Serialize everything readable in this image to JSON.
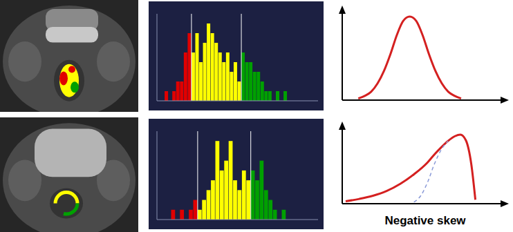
{
  "chart_data": [
    {
      "type": "histogram",
      "bins": [
        500,
        540,
        580,
        620,
        660,
        700,
        740,
        780,
        820,
        860,
        900,
        940,
        980,
        1020,
        1060,
        1100,
        1140,
        1180,
        1220,
        1260,
        1300,
        1340,
        1380,
        1420,
        1460,
        1500,
        1540,
        1580,
        1620,
        1660,
        1700,
        1740,
        1780
      ],
      "counts": [
        1,
        0,
        1,
        2,
        2,
        5,
        7,
        5,
        7,
        4,
        6,
        8,
        7,
        6,
        5,
        4,
        5,
        3,
        4,
        2,
        5,
        4,
        4,
        3,
        3,
        2,
        1,
        1,
        0,
        1,
        0,
        1
      ],
      "colors": [
        "#e00000",
        "#e00000",
        "#e00000",
        "#e00000",
        "#e00000",
        "#e00000",
        "#e00000",
        "#ffff00",
        "#ffff00",
        "#ffff00",
        "#ffff00",
        "#ffff00",
        "#ffff00",
        "#ffff00",
        "#ffff00",
        "#ffff00",
        "#ffff00",
        "#ffff00",
        "#ffff00",
        "#ffff00",
        "#00a000",
        "#00a000",
        "#00a000",
        "#00a000",
        "#00a000",
        "#00a000",
        "#00a000",
        "#00a000",
        "#00a000",
        "#00a000",
        "#00a000",
        "#00a000"
      ],
      "thresholds": [
        780,
        1300
      ],
      "xlim": [
        420,
        2100
      ],
      "ylim": [
        0,
        9
      ],
      "tick_labels": false
    },
    {
      "type": "histogram",
      "bins": [
        600,
        650,
        700,
        750,
        800,
        850,
        900,
        950,
        1000,
        1050,
        1100,
        1150,
        1200,
        1250,
        1300,
        1350,
        1400,
        1450,
        1500,
        1550,
        1600,
        1650,
        1700,
        1750,
        1800,
        1850,
        1900
      ],
      "counts": [
        1,
        0,
        1,
        0,
        1,
        2,
        1,
        2,
        3,
        4,
        8,
        5,
        6,
        8,
        4,
        3,
        5,
        4,
        5,
        4,
        6,
        3,
        2,
        1,
        0,
        1
      ],
      "colors": [
        "#e00000",
        "#e00000",
        "#e00000",
        "#e00000",
        "#e00000",
        "#e00000",
        "#ffff00",
        "#ffff00",
        "#ffff00",
        "#ffff00",
        "#ffff00",
        "#ffff00",
        "#ffff00",
        "#ffff00",
        "#ffff00",
        "#ffff00",
        "#ffff00",
        "#ffff00",
        "#00a000",
        "#00a000",
        "#00a000",
        "#00a000",
        "#00a000",
        "#00a000",
        "#00a000",
        "#00a000"
      ],
      "thresholds": [
        900,
        1500
      ],
      "xlim": [
        440,
        2260
      ],
      "ylim": [
        0,
        9
      ],
      "tick_labels": false
    },
    {
      "type": "line",
      "series": [
        {
          "x": [
            0,
            1,
            2,
            3,
            4,
            5,
            6,
            7,
            8,
            9,
            10,
            11,
            12,
            13,
            14,
            15,
            16
          ],
          "values": [
            0.02,
            0.05,
            0.1,
            0.2,
            0.35,
            0.55,
            0.78,
            0.95,
            1.0,
            0.95,
            0.78,
            0.55,
            0.35,
            0.2,
            0.1,
            0.05,
            0.02
          ],
          "color": "#d42020",
          "line_style": "solid"
        }
      ],
      "xlim": [
        -2.5,
        23
      ],
      "ylim": [
        0,
        1.1
      ],
      "tick_labels": false
    },
    {
      "type": "line",
      "x_label": "Negative skew",
      "series": [
        {
          "x": [
            0,
            2,
            4,
            6,
            8,
            10,
            12,
            13,
            14,
            15,
            16,
            16.8,
            17.6,
            18.4,
            19
          ],
          "values": [
            0.03,
            0.06,
            0.1,
            0.16,
            0.25,
            0.37,
            0.52,
            0.62,
            0.71,
            0.79,
            0.85,
            0.87,
            0.8,
            0.5,
            0.05
          ],
          "color": "#d42020",
          "line_style": "solid"
        },
        {
          "x": [
            10,
            11,
            12,
            13,
            14,
            15
          ],
          "values": [
            0.02,
            0.1,
            0.27,
            0.5,
            0.68,
            0.79
          ],
          "color": "#8a9ad8",
          "line_style": "dashed"
        }
      ],
      "xlim": [
        -0.5,
        23.5
      ],
      "ylim": [
        0,
        1
      ],
      "tick_labels": false
    }
  ]
}
